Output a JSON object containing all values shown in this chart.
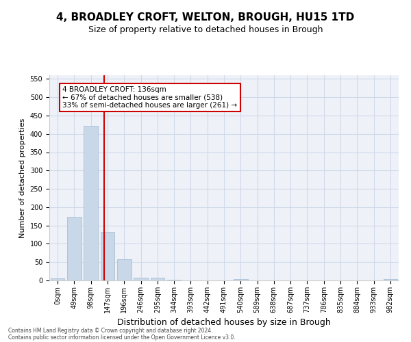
{
  "title": "4, BROADLEY CROFT, WELTON, BROUGH, HU15 1TD",
  "subtitle": "Size of property relative to detached houses in Brough",
  "xlabel": "Distribution of detached houses by size in Brough",
  "ylabel": "Number of detached properties",
  "bin_labels": [
    "0sqm",
    "49sqm",
    "98sqm",
    "147sqm",
    "196sqm",
    "246sqm",
    "295sqm",
    "344sqm",
    "393sqm",
    "442sqm",
    "491sqm",
    "540sqm",
    "589sqm",
    "638sqm",
    "687sqm",
    "737sqm",
    "786sqm",
    "835sqm",
    "884sqm",
    "933sqm",
    "982sqm"
  ],
  "bar_heights": [
    5,
    173,
    421,
    132,
    57,
    8,
    7,
    2,
    0,
    0,
    0,
    3,
    0,
    0,
    0,
    0,
    0,
    0,
    0,
    0,
    3
  ],
  "bar_color": "#c8d8e8",
  "bar_edgecolor": "#a0b8d0",
  "vline_x": 2.78,
  "vline_color": "#cc0000",
  "annotation_text": "4 BROADLEY CROFT: 136sqm\n← 67% of detached houses are smaller (538)\n33% of semi-detached houses are larger (261) →",
  "annotation_box_edgecolor": "#cc0000",
  "annotation_box_facecolor": "#ffffff",
  "ylim": [
    0,
    560
  ],
  "yticks": [
    0,
    50,
    100,
    150,
    200,
    250,
    300,
    350,
    400,
    450,
    500,
    550
  ],
  "footer_line1": "Contains HM Land Registry data © Crown copyright and database right 2024.",
  "footer_line2": "Contains public sector information licensed under the Open Government Licence v3.0.",
  "background_color": "#ffffff",
  "grid_color": "#d0d8e8",
  "title_fontsize": 11,
  "subtitle_fontsize": 9,
  "tick_fontsize": 7,
  "ylabel_fontsize": 8,
  "xlabel_fontsize": 9,
  "annotation_fontsize": 7.5,
  "footer_fontsize": 5.5
}
